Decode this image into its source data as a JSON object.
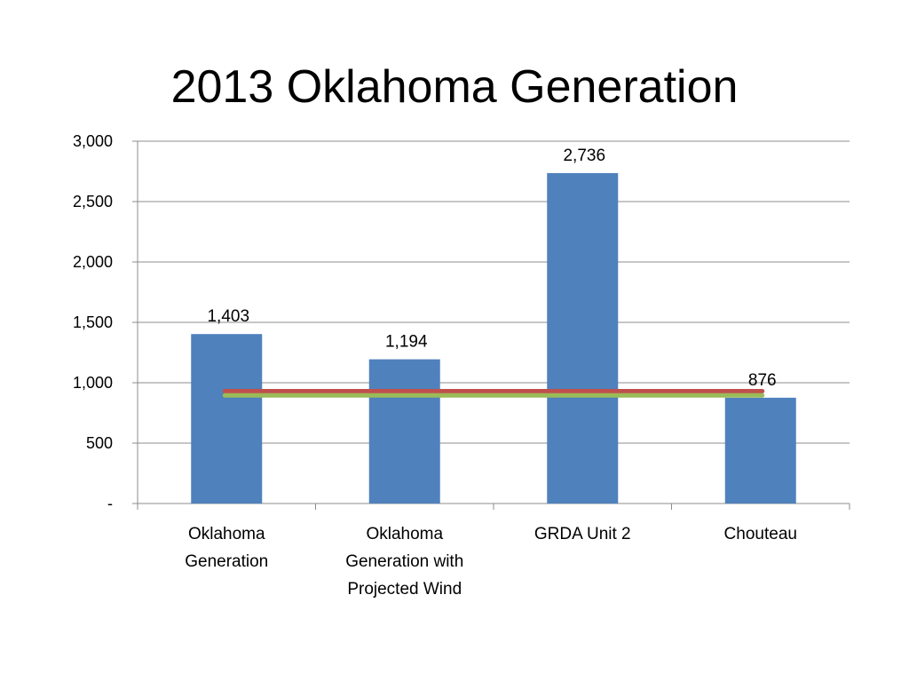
{
  "slide": {
    "title": "2013 Oklahoma Generation"
  },
  "chart_data": {
    "type": "bar",
    "title": "",
    "xlabel": "",
    "ylabel": "",
    "categories": [
      [
        "Oklahoma",
        "Generation"
      ],
      [
        "Oklahoma",
        "Generation with",
        "Projected Wind"
      ],
      [
        "GRDA Unit 2"
      ],
      [
        "Chouteau"
      ]
    ],
    "values": [
      1403,
      1194,
      2736,
      876
    ],
    "data_labels": [
      "1,403",
      "1,194",
      "2,736",
      "876"
    ],
    "ylim": [
      0,
      3000
    ],
    "y_ticks": [
      0,
      500,
      1000,
      1500,
      2000,
      2500,
      3000
    ],
    "y_tick_labels": [
      "-",
      "500",
      "1,000",
      "1,500",
      "2,000",
      "2,500",
      "3,000"
    ],
    "grid": true,
    "legend": "none",
    "bar_color": "#4F81BD",
    "reference_lines": [
      {
        "value": 930,
        "color": "#C0504D"
      },
      {
        "value": 895,
        "color": "#9BBB59"
      }
    ]
  }
}
